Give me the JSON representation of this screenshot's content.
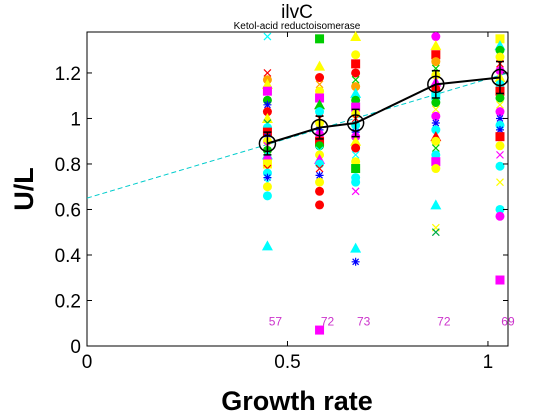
{
  "chart_data": {
    "type": "scatter",
    "title": "ilvC",
    "subtitle": "Ketol-acid reductoisomerase",
    "xlabel": "Growth rate",
    "ylabel": "U/L",
    "xlim": [
      0,
      1.05
    ],
    "ylim": [
      0,
      1.38
    ],
    "x_ticks": [
      0,
      0.5,
      1
    ],
    "x_tick_labels": [
      "0",
      "0.5",
      "1"
    ],
    "y_ticks": [
      0,
      0.2,
      0.4,
      0.6,
      0.8,
      1.0,
      1.2
    ],
    "y_tick_labels": [
      "0",
      "0.2",
      "0.4",
      "0.6",
      "0.8",
      "1",
      "1.2"
    ],
    "grid": false,
    "colors": {
      "mean_line": "#000000",
      "fit_line": "#00cccc",
      "count_text": "#cc33cc",
      "palette": [
        "#ff0000",
        "#00cc00",
        "#ffff00",
        "#ff00ff",
        "#00ffff",
        "#0000ff",
        "#ffa500",
        "#ff69b4",
        "#00aa44",
        "#a020f0"
      ]
    },
    "mean_series": {
      "x": [
        0.45,
        0.58,
        0.67,
        0.87,
        1.03
      ],
      "y": [
        0.89,
        0.96,
        0.98,
        1.15,
        1.18
      ],
      "err": [
        0.05,
        0.05,
        0.06,
        0.06,
        0.07
      ]
    },
    "fit_line": {
      "x": [
        0,
        1.05
      ],
      "y": [
        0.65,
        1.2
      ],
      "style": "dashed"
    },
    "counts": [
      {
        "x": 0.45,
        "label": "57"
      },
      {
        "x": 0.58,
        "label": "72"
      },
      {
        "x": 0.67,
        "label": "73"
      },
      {
        "x": 0.87,
        "label": "72"
      },
      {
        "x": 1.03,
        "label": "69"
      }
    ],
    "count_y": 0.09,
    "groups": [
      {
        "x": 0.45,
        "points": [
          {
            "y": 1.36,
            "m": "x",
            "c": 4
          },
          {
            "y": 1.2,
            "m": "x",
            "c": 0
          },
          {
            "y": 1.17,
            "m": "o",
            "c": 6
          },
          {
            "y": 1.15,
            "m": "^",
            "c": 2
          },
          {
            "y": 1.12,
            "m": "s",
            "c": 3
          },
          {
            "y": 1.08,
            "m": "o",
            "c": 1
          },
          {
            "y": 1.06,
            "m": "*",
            "c": 5
          },
          {
            "y": 1.03,
            "m": "o",
            "c": 0
          },
          {
            "y": 1.0,
            "m": "^",
            "c": 2
          },
          {
            "y": 0.98,
            "m": "x",
            "c": 8
          },
          {
            "y": 0.96,
            "m": "o",
            "c": 4
          },
          {
            "y": 0.94,
            "m": "s",
            "c": 0
          },
          {
            "y": 0.92,
            "m": "*",
            "c": 5
          },
          {
            "y": 0.9,
            "m": "o",
            "c": 2
          },
          {
            "y": 0.88,
            "m": "x",
            "c": 3
          },
          {
            "y": 0.86,
            "m": "o",
            "c": 1
          },
          {
            "y": 0.84,
            "m": "^",
            "c": 4
          },
          {
            "y": 0.82,
            "m": "o",
            "c": 3
          },
          {
            "y": 0.8,
            "m": "s",
            "c": 2
          },
          {
            "y": 0.78,
            "m": "x",
            "c": 0
          },
          {
            "y": 0.76,
            "m": "o",
            "c": 4
          },
          {
            "y": 0.74,
            "m": "*",
            "c": 5
          },
          {
            "y": 0.72,
            "m": "x",
            "c": 4
          },
          {
            "y": 0.7,
            "m": "o",
            "c": 2
          },
          {
            "y": 0.66,
            "m": "o",
            "c": 4
          },
          {
            "y": 0.44,
            "m": "^",
            "c": 4
          }
        ]
      },
      {
        "x": 0.58,
        "points": [
          {
            "y": 1.35,
            "m": "s",
            "c": 1
          },
          {
            "y": 1.23,
            "m": "^",
            "c": 2
          },
          {
            "y": 1.18,
            "m": "o",
            "c": 0
          },
          {
            "y": 1.15,
            "m": "x",
            "c": 6
          },
          {
            "y": 1.12,
            "m": "o",
            "c": 2
          },
          {
            "y": 1.09,
            "m": "s",
            "c": 3
          },
          {
            "y": 1.06,
            "m": "^",
            "c": 1
          },
          {
            "y": 1.03,
            "m": "o",
            "c": 4
          },
          {
            "y": 1.0,
            "m": "x",
            "c": 0
          },
          {
            "y": 0.98,
            "m": "o",
            "c": 2
          },
          {
            "y": 0.95,
            "m": "*",
            "c": 5
          },
          {
            "y": 0.93,
            "m": "o",
            "c": 3
          },
          {
            "y": 0.9,
            "m": "s",
            "c": 0
          },
          {
            "y": 0.88,
            "m": "o",
            "c": 1
          },
          {
            "y": 0.86,
            "m": "x",
            "c": 4
          },
          {
            "y": 0.84,
            "m": "o",
            "c": 2
          },
          {
            "y": 0.82,
            "m": "^",
            "c": 3
          },
          {
            "y": 0.8,
            "m": "o",
            "c": 4
          },
          {
            "y": 0.78,
            "m": "x",
            "c": 0
          },
          {
            "y": 0.75,
            "m": "*",
            "c": 5
          },
          {
            "y": 0.72,
            "m": "o",
            "c": 2
          },
          {
            "y": 0.68,
            "m": "o",
            "c": 0
          },
          {
            "y": 0.62,
            "m": "o",
            "c": 0
          },
          {
            "y": 0.07,
            "m": "s",
            "c": 3
          }
        ]
      },
      {
        "x": 0.67,
        "points": [
          {
            "y": 1.36,
            "m": "^",
            "c": 2
          },
          {
            "y": 1.28,
            "m": "o",
            "c": 2
          },
          {
            "y": 1.24,
            "m": "s",
            "c": 0
          },
          {
            "y": 1.2,
            "m": "o",
            "c": 0
          },
          {
            "y": 1.17,
            "m": "x",
            "c": 1
          },
          {
            "y": 1.14,
            "m": "o",
            "c": 6
          },
          {
            "y": 1.11,
            "m": "^",
            "c": 4
          },
          {
            "y": 1.08,
            "m": "o",
            "c": 1
          },
          {
            "y": 1.05,
            "m": "s",
            "c": 3
          },
          {
            "y": 1.02,
            "m": "o",
            "c": 2
          },
          {
            "y": 1.0,
            "m": "x",
            "c": 0
          },
          {
            "y": 0.97,
            "m": "o",
            "c": 4
          },
          {
            "y": 0.94,
            "m": "*",
            "c": 5
          },
          {
            "y": 0.92,
            "m": "o",
            "c": 3
          },
          {
            "y": 0.9,
            "m": "^",
            "c": 2
          },
          {
            "y": 0.87,
            "m": "o",
            "c": 0
          },
          {
            "y": 0.84,
            "m": "x",
            "c": 4
          },
          {
            "y": 0.81,
            "m": "o",
            "c": 2
          },
          {
            "y": 0.78,
            "m": "s",
            "c": 1
          },
          {
            "y": 0.74,
            "m": "o",
            "c": 4
          },
          {
            "y": 0.72,
            "m": "o",
            "c": 4
          },
          {
            "y": 0.68,
            "m": "x",
            "c": 3
          },
          {
            "y": 0.43,
            "m": "^",
            "c": 4
          },
          {
            "y": 0.37,
            "m": "*",
            "c": 5
          }
        ]
      },
      {
        "x": 0.87,
        "points": [
          {
            "y": 1.36,
            "m": "o",
            "c": 3
          },
          {
            "y": 1.32,
            "m": "^",
            "c": 2
          },
          {
            "y": 1.28,
            "m": "s",
            "c": 0
          },
          {
            "y": 1.25,
            "m": "o",
            "c": 6
          },
          {
            "y": 1.22,
            "m": "x",
            "c": 1
          },
          {
            "y": 1.19,
            "m": "o",
            "c": 2
          },
          {
            "y": 1.16,
            "m": "^",
            "c": 3
          },
          {
            "y": 1.13,
            "m": "o",
            "c": 0
          },
          {
            "y": 1.1,
            "m": "s",
            "c": 4
          },
          {
            "y": 1.07,
            "m": "o",
            "c": 1
          },
          {
            "y": 1.04,
            "m": "x",
            "c": 2
          },
          {
            "y": 1.01,
            "m": "o",
            "c": 3
          },
          {
            "y": 0.98,
            "m": "*",
            "c": 5
          },
          {
            "y": 0.95,
            "m": "o",
            "c": 4
          },
          {
            "y": 0.92,
            "m": "^",
            "c": 0
          },
          {
            "y": 0.9,
            "m": "o",
            "c": 2
          },
          {
            "y": 0.87,
            "m": "x",
            "c": 1
          },
          {
            "y": 0.84,
            "m": "o",
            "c": 4
          },
          {
            "y": 0.81,
            "m": "s",
            "c": 3
          },
          {
            "y": 0.78,
            "m": "o",
            "c": 2
          },
          {
            "y": 0.62,
            "m": "^",
            "c": 4
          },
          {
            "y": 0.52,
            "m": "x",
            "c": 2
          },
          {
            "y": 0.5,
            "m": "x",
            "c": 8
          }
        ]
      },
      {
        "x": 1.03,
        "points": [
          {
            "y": 1.35,
            "m": "s",
            "c": 2
          },
          {
            "y": 1.32,
            "m": "^",
            "c": 4
          },
          {
            "y": 1.3,
            "m": "o",
            "c": 1
          },
          {
            "y": 1.27,
            "m": "o",
            "c": 2
          },
          {
            "y": 1.24,
            "m": "x",
            "c": 0
          },
          {
            "y": 1.21,
            "m": "o",
            "c": 3
          },
          {
            "y": 1.18,
            "m": "^",
            "c": 2
          },
          {
            "y": 1.15,
            "m": "o",
            "c": 4
          },
          {
            "y": 1.12,
            "m": "s",
            "c": 0
          },
          {
            "y": 1.09,
            "m": "o",
            "c": 1
          },
          {
            "y": 1.06,
            "m": "x",
            "c": 2
          },
          {
            "y": 1.03,
            "m": "o",
            "c": 3
          },
          {
            "y": 1.0,
            "m": "*",
            "c": 5
          },
          {
            "y": 0.97,
            "m": "o",
            "c": 4
          },
          {
            "y": 0.95,
            "m": "*",
            "c": 5
          },
          {
            "y": 0.92,
            "m": "s",
            "c": 0
          },
          {
            "y": 0.88,
            "m": "o",
            "c": 2
          },
          {
            "y": 0.84,
            "m": "x",
            "c": 3
          },
          {
            "y": 0.79,
            "m": "o",
            "c": 4
          },
          {
            "y": 0.72,
            "m": "x",
            "c": 2
          },
          {
            "y": 0.6,
            "m": "o",
            "c": 4
          },
          {
            "y": 0.57,
            "m": "o",
            "c": 3
          },
          {
            "y": 0.29,
            "m": "s",
            "c": 3
          }
        ]
      }
    ]
  }
}
